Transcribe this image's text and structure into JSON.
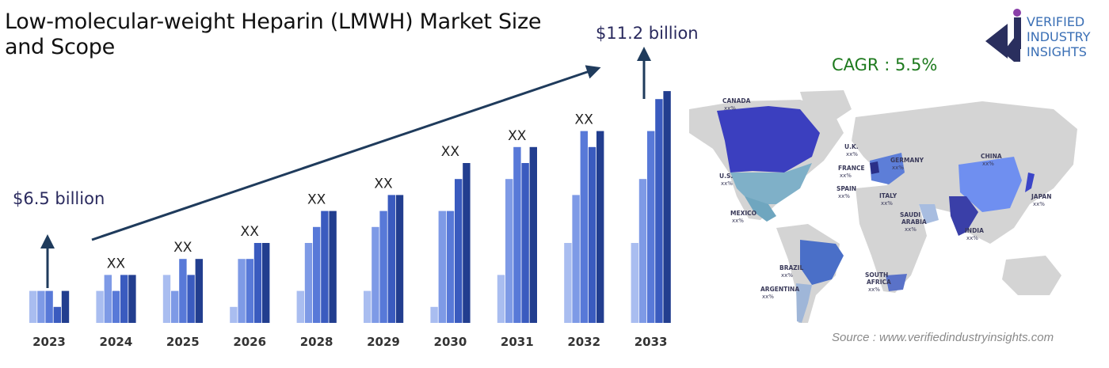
{
  "title": "Low-molecular-weight Heparin (LMWH) Market Size and Scope",
  "callouts": {
    "start": "$6.5 billion",
    "end": "$11.2 billion"
  },
  "cagr": "CAGR : 5.5%",
  "source": "Source : www.verifiedindustryinsights.com",
  "logo": {
    "line1": "VERIFIED",
    "line2": "INDUSTRY",
    "line3": "INSIGHTS"
  },
  "chart_data": {
    "type": "bar",
    "categories": [
      "2023",
      "2024",
      "2025",
      "2026",
      "2028",
      "2029",
      "2030",
      "2031",
      "2032",
      "2033"
    ],
    "bar_label": "XX",
    "label_on_category": [
      false,
      true,
      true,
      true,
      true,
      true,
      true,
      true,
      true,
      false
    ],
    "series_colors": [
      "#a9bdf0",
      "#7e9ae6",
      "#5879d8",
      "#3a5bbf",
      "#223e8f"
    ],
    "values_relative": [
      [
        2,
        2,
        2,
        1,
        2
      ],
      [
        2,
        3,
        2,
        3,
        3
      ],
      [
        3,
        2,
        4,
        3,
        4
      ],
      [
        1,
        4,
        4,
        5,
        5
      ],
      [
        2,
        5,
        6,
        7,
        7
      ],
      [
        2,
        6,
        7,
        8,
        8
      ],
      [
        1,
        7,
        7,
        9,
        10
      ],
      [
        3,
        9,
        11,
        10,
        11
      ],
      [
        5,
        8,
        12,
        11,
        12
      ],
      [
        5,
        9,
        12,
        14,
        14.5
      ]
    ]
  },
  "map": {
    "colors": {
      "land": "#d4d4d4",
      "canada": "#3b3fbf",
      "usa": "#7fb0c8",
      "mexico": "#6fa6bf",
      "brazil": "#4a6fc8",
      "argentina": "#9fb6d8",
      "europe": "#5d7ed8",
      "uk": "#2a2f88",
      "china": "#6f8ff0",
      "india": "#3a3fa8",
      "japan": "#3b45c8",
      "saudi": "#a8bde0",
      "south_africa": "#5a72c8"
    },
    "labels": [
      {
        "name": "CANADA",
        "value": "xx%"
      },
      {
        "name": "U.S.",
        "value": "xx%"
      },
      {
        "name": "MEXICO",
        "value": "xx%"
      },
      {
        "name": "BRAZIL",
        "value": "xx%"
      },
      {
        "name": "ARGENTINA",
        "value": "xx%"
      },
      {
        "name": "U.K.",
        "value": "xx%"
      },
      {
        "name": "FRANCE",
        "value": "xx%"
      },
      {
        "name": "GERMANY",
        "value": "xx%"
      },
      {
        "name": "SPAIN",
        "value": "xx%"
      },
      {
        "name": "ITALY",
        "value": "xx%"
      },
      {
        "name": "SAUDI",
        "value": "ARABIA"
      },
      {
        "name": "SOUTH",
        "value": "AFRICA"
      },
      {
        "name": "CHINA",
        "value": "xx%"
      },
      {
        "name": "INDIA",
        "value": "xx%"
      },
      {
        "name": "JAPAN",
        "value": "xx%"
      }
    ],
    "extra_values": {
      "saudi": "xx%",
      "south_africa": "xx%"
    }
  }
}
